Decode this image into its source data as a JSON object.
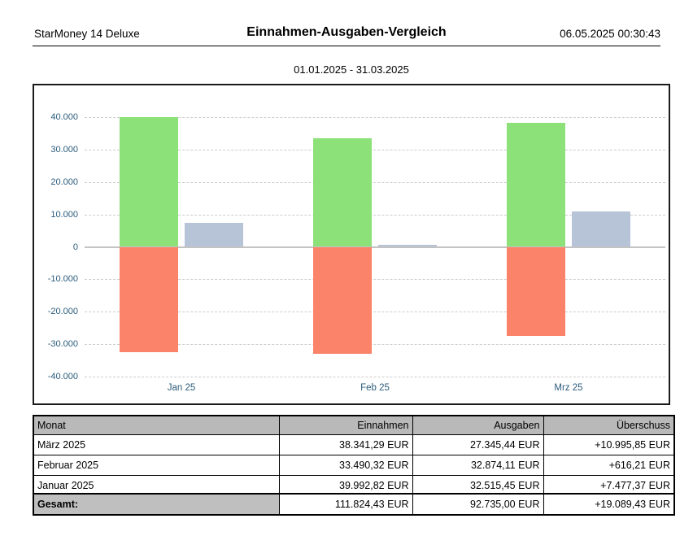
{
  "header": {
    "app_name": "StarMoney 14 Deluxe",
    "title": "Einnahmen-Ausgaben-Vergleich",
    "timestamp": "06.05.2025 00:30:43"
  },
  "period_label": "01.01.2025 - 31.03.2025",
  "chart_data": {
    "type": "bar",
    "title": "Einnahmen-Ausgaben-Vergleich 01.01.2025 - 31.03.2025",
    "categories": [
      "Jan 25",
      "Feb 25",
      "Mrz 25"
    ],
    "series": [
      {
        "name": "Einnahmen",
        "color": "#8ce178",
        "direction": "up",
        "values": [
          39992.82,
          33490.32,
          38341.29
        ]
      },
      {
        "name": "Ausgaben",
        "color": "#fa8369",
        "direction": "down",
        "values": [
          -32515.45,
          -32874.11,
          -27345.44
        ]
      },
      {
        "name": "Überschuss",
        "color": "#b7c4d8",
        "direction": "up",
        "values": [
          7477.37,
          616.21,
          10995.85
        ]
      }
    ],
    "unit": "EUR",
    "ylim": [
      -40000,
      40000
    ],
    "yticks": [
      40000,
      30000,
      20000,
      10000,
      0,
      -10000,
      -20000,
      -30000,
      -40000
    ],
    "ytick_labels": [
      "40.000",
      "30.000",
      "20.000",
      "10.000",
      "0",
      "-10.000",
      "-20.000",
      "-30.000",
      "-40.000"
    ],
    "grid": "horizontal-dashed",
    "legend_position": "none"
  },
  "table": {
    "columns": [
      "Monat",
      "Einnahmen",
      "Ausgaben",
      "Überschuss"
    ],
    "rows": [
      [
        "März 2025",
        "38.341,29 EUR",
        "27.345,44 EUR",
        "+10.995,85 EUR"
      ],
      [
        "Februar 2025",
        "33.490,32 EUR",
        "32.874,11 EUR",
        "+616,21 EUR"
      ],
      [
        "Januar 2025",
        "39.992,82 EUR",
        "32.515,45 EUR",
        "+7.477,37 EUR"
      ]
    ],
    "total_row": {
      "label": "Gesamt:",
      "values": [
        "111.824,43 EUR",
        "92.735,00 EUR",
        "+19.089,43 EUR"
      ]
    }
  },
  "colors": {
    "axis_text": "#2b5c7c",
    "gridline": "#cccccc",
    "zero_line": "#c3c3c3",
    "chart_border": "#1a1a1a",
    "table_border": "#000000",
    "table_header_bg": "#b9b9b9",
    "total_cell_bg": "#bfbfbf"
  }
}
